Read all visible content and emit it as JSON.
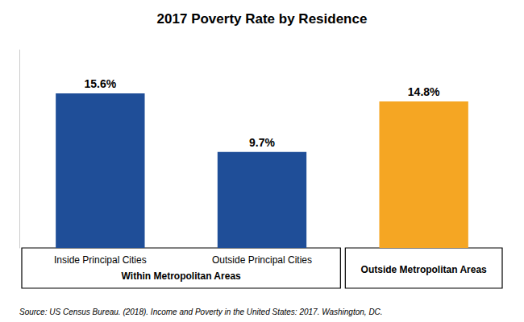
{
  "chart_data": {
    "type": "bar",
    "title": "2017 Poverty Rate by Residence",
    "categories": [
      "Inside Principal Cities",
      "Outside Principal Cities",
      "Outside Metropolitan Areas"
    ],
    "values": [
      15.6,
      9.7,
      14.8
    ],
    "value_labels": [
      "15.6%",
      "9.7%",
      "14.8%"
    ],
    "colors": [
      "#1F4E98",
      "#1F4E98",
      "#F5A623"
    ],
    "groups": [
      {
        "label": "Within Metropolitan Areas",
        "categories": [
          "Inside Principal Cities",
          "Outside Principal Cities"
        ]
      }
    ],
    "annotations": [
      "Source: US Census Bureau. (2018). Income and Poverty in the United States: 2017. Washington, DC."
    ],
    "ylim": [
      0,
      20
    ],
    "yticks": [],
    "grid": false,
    "data_labels": true,
    "tick_labels": "x"
  }
}
